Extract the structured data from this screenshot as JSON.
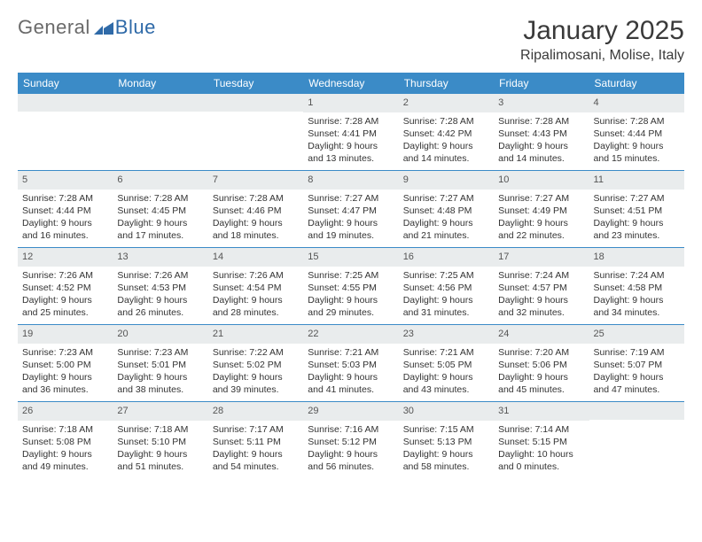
{
  "logo": {
    "general": "General",
    "blue": "Blue"
  },
  "title": "January 2025",
  "location": "Ripalimosani, Molise, Italy",
  "colors": {
    "header_bar": "#3b8bc7",
    "daynum_bg": "#e9eced",
    "text": "#333333",
    "logo_gray": "#6a6a6a",
    "logo_blue": "#2f6aa8"
  },
  "days_of_week": [
    "Sunday",
    "Monday",
    "Tuesday",
    "Wednesday",
    "Thursday",
    "Friday",
    "Saturday"
  ],
  "weeks": [
    [
      {
        "n": "",
        "sr": "",
        "ss": "",
        "d1": "",
        "d2": ""
      },
      {
        "n": "",
        "sr": "",
        "ss": "",
        "d1": "",
        "d2": ""
      },
      {
        "n": "",
        "sr": "",
        "ss": "",
        "d1": "",
        "d2": ""
      },
      {
        "n": "1",
        "sr": "Sunrise: 7:28 AM",
        "ss": "Sunset: 4:41 PM",
        "d1": "Daylight: 9 hours",
        "d2": "and 13 minutes."
      },
      {
        "n": "2",
        "sr": "Sunrise: 7:28 AM",
        "ss": "Sunset: 4:42 PM",
        "d1": "Daylight: 9 hours",
        "d2": "and 14 minutes."
      },
      {
        "n": "3",
        "sr": "Sunrise: 7:28 AM",
        "ss": "Sunset: 4:43 PM",
        "d1": "Daylight: 9 hours",
        "d2": "and 14 minutes."
      },
      {
        "n": "4",
        "sr": "Sunrise: 7:28 AM",
        "ss": "Sunset: 4:44 PM",
        "d1": "Daylight: 9 hours",
        "d2": "and 15 minutes."
      }
    ],
    [
      {
        "n": "5",
        "sr": "Sunrise: 7:28 AM",
        "ss": "Sunset: 4:44 PM",
        "d1": "Daylight: 9 hours",
        "d2": "and 16 minutes."
      },
      {
        "n": "6",
        "sr": "Sunrise: 7:28 AM",
        "ss": "Sunset: 4:45 PM",
        "d1": "Daylight: 9 hours",
        "d2": "and 17 minutes."
      },
      {
        "n": "7",
        "sr": "Sunrise: 7:28 AM",
        "ss": "Sunset: 4:46 PM",
        "d1": "Daylight: 9 hours",
        "d2": "and 18 minutes."
      },
      {
        "n": "8",
        "sr": "Sunrise: 7:27 AM",
        "ss": "Sunset: 4:47 PM",
        "d1": "Daylight: 9 hours",
        "d2": "and 19 minutes."
      },
      {
        "n": "9",
        "sr": "Sunrise: 7:27 AM",
        "ss": "Sunset: 4:48 PM",
        "d1": "Daylight: 9 hours",
        "d2": "and 21 minutes."
      },
      {
        "n": "10",
        "sr": "Sunrise: 7:27 AM",
        "ss": "Sunset: 4:49 PM",
        "d1": "Daylight: 9 hours",
        "d2": "and 22 minutes."
      },
      {
        "n": "11",
        "sr": "Sunrise: 7:27 AM",
        "ss": "Sunset: 4:51 PM",
        "d1": "Daylight: 9 hours",
        "d2": "and 23 minutes."
      }
    ],
    [
      {
        "n": "12",
        "sr": "Sunrise: 7:26 AM",
        "ss": "Sunset: 4:52 PM",
        "d1": "Daylight: 9 hours",
        "d2": "and 25 minutes."
      },
      {
        "n": "13",
        "sr": "Sunrise: 7:26 AM",
        "ss": "Sunset: 4:53 PM",
        "d1": "Daylight: 9 hours",
        "d2": "and 26 minutes."
      },
      {
        "n": "14",
        "sr": "Sunrise: 7:26 AM",
        "ss": "Sunset: 4:54 PM",
        "d1": "Daylight: 9 hours",
        "d2": "and 28 minutes."
      },
      {
        "n": "15",
        "sr": "Sunrise: 7:25 AM",
        "ss": "Sunset: 4:55 PM",
        "d1": "Daylight: 9 hours",
        "d2": "and 29 minutes."
      },
      {
        "n": "16",
        "sr": "Sunrise: 7:25 AM",
        "ss": "Sunset: 4:56 PM",
        "d1": "Daylight: 9 hours",
        "d2": "and 31 minutes."
      },
      {
        "n": "17",
        "sr": "Sunrise: 7:24 AM",
        "ss": "Sunset: 4:57 PM",
        "d1": "Daylight: 9 hours",
        "d2": "and 32 minutes."
      },
      {
        "n": "18",
        "sr": "Sunrise: 7:24 AM",
        "ss": "Sunset: 4:58 PM",
        "d1": "Daylight: 9 hours",
        "d2": "and 34 minutes."
      }
    ],
    [
      {
        "n": "19",
        "sr": "Sunrise: 7:23 AM",
        "ss": "Sunset: 5:00 PM",
        "d1": "Daylight: 9 hours",
        "d2": "and 36 minutes."
      },
      {
        "n": "20",
        "sr": "Sunrise: 7:23 AM",
        "ss": "Sunset: 5:01 PM",
        "d1": "Daylight: 9 hours",
        "d2": "and 38 minutes."
      },
      {
        "n": "21",
        "sr": "Sunrise: 7:22 AM",
        "ss": "Sunset: 5:02 PM",
        "d1": "Daylight: 9 hours",
        "d2": "and 39 minutes."
      },
      {
        "n": "22",
        "sr": "Sunrise: 7:21 AM",
        "ss": "Sunset: 5:03 PM",
        "d1": "Daylight: 9 hours",
        "d2": "and 41 minutes."
      },
      {
        "n": "23",
        "sr": "Sunrise: 7:21 AM",
        "ss": "Sunset: 5:05 PM",
        "d1": "Daylight: 9 hours",
        "d2": "and 43 minutes."
      },
      {
        "n": "24",
        "sr": "Sunrise: 7:20 AM",
        "ss": "Sunset: 5:06 PM",
        "d1": "Daylight: 9 hours",
        "d2": "and 45 minutes."
      },
      {
        "n": "25",
        "sr": "Sunrise: 7:19 AM",
        "ss": "Sunset: 5:07 PM",
        "d1": "Daylight: 9 hours",
        "d2": "and 47 minutes."
      }
    ],
    [
      {
        "n": "26",
        "sr": "Sunrise: 7:18 AM",
        "ss": "Sunset: 5:08 PM",
        "d1": "Daylight: 9 hours",
        "d2": "and 49 minutes."
      },
      {
        "n": "27",
        "sr": "Sunrise: 7:18 AM",
        "ss": "Sunset: 5:10 PM",
        "d1": "Daylight: 9 hours",
        "d2": "and 51 minutes."
      },
      {
        "n": "28",
        "sr": "Sunrise: 7:17 AM",
        "ss": "Sunset: 5:11 PM",
        "d1": "Daylight: 9 hours",
        "d2": "and 54 minutes."
      },
      {
        "n": "29",
        "sr": "Sunrise: 7:16 AM",
        "ss": "Sunset: 5:12 PM",
        "d1": "Daylight: 9 hours",
        "d2": "and 56 minutes."
      },
      {
        "n": "30",
        "sr": "Sunrise: 7:15 AM",
        "ss": "Sunset: 5:13 PM",
        "d1": "Daylight: 9 hours",
        "d2": "and 58 minutes."
      },
      {
        "n": "31",
        "sr": "Sunrise: 7:14 AM",
        "ss": "Sunset: 5:15 PM",
        "d1": "Daylight: 10 hours",
        "d2": "and 0 minutes."
      },
      {
        "n": "",
        "sr": "",
        "ss": "",
        "d1": "",
        "d2": ""
      }
    ]
  ]
}
